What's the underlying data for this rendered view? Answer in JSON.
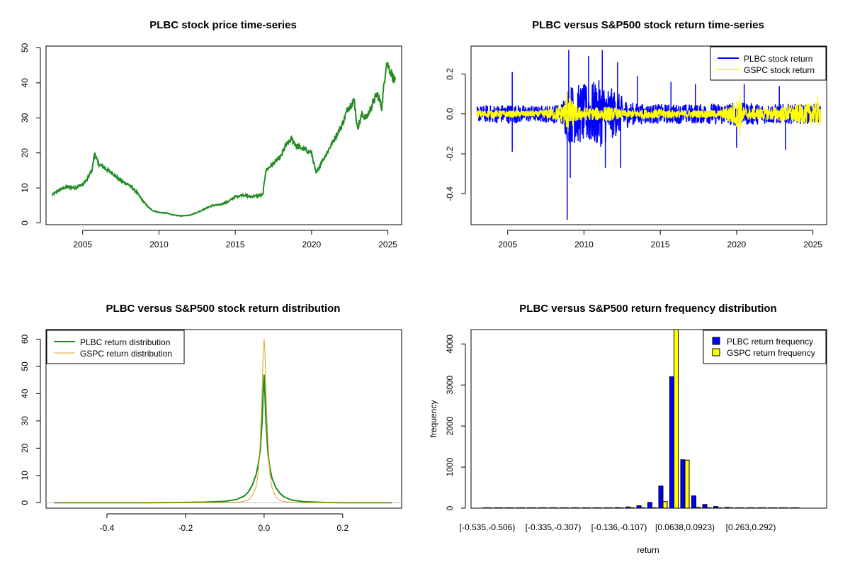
{
  "chart_data": [
    {
      "id": "price",
      "type": "line",
      "title": "PLBC stock price time-series",
      "xlabel": "",
      "ylabel": "",
      "xlim": [
        2002.6,
        2025.9
      ],
      "ylim": [
        -0.5,
        50.5
      ],
      "xticks": [
        2005,
        2010,
        2015,
        2020,
        2025
      ],
      "xtick_labels": [
        "2005",
        "2010",
        "2015",
        "2020",
        "2025"
      ],
      "yticks": [
        0,
        10,
        20,
        30,
        40,
        50
      ],
      "ytick_labels": [
        "0",
        "10",
        "20",
        "30",
        "40",
        "50"
      ],
      "legend": null,
      "series": [
        {
          "color": "#228b22",
          "x": [
            2003.0,
            2003.5,
            2004.0,
            2004.5,
            2005.0,
            2005.3,
            2005.6,
            2005.8,
            2006.0,
            2006.5,
            2007.0,
            2007.5,
            2008.0,
            2008.5,
            2009.0,
            2009.3,
            2009.6,
            2010.0,
            2010.5,
            2011.0,
            2011.5,
            2012.0,
            2012.5,
            2013.0,
            2013.5,
            2014.0,
            2014.5,
            2015.0,
            2015.5,
            2016.0,
            2016.5,
            2016.8,
            2017.0,
            2017.5,
            2018.0,
            2018.3,
            2018.7,
            2019.0,
            2019.5,
            2020.0,
            2020.3,
            2020.6,
            2021.0,
            2021.5,
            2022.0,
            2022.4,
            2022.8,
            2023.0,
            2023.3,
            2023.6,
            2024.0,
            2024.3,
            2024.6,
            2024.9,
            2025.2,
            2025.5
          ],
          "y": [
            8,
            9.5,
            10.3,
            10.0,
            11,
            12.5,
            15,
            20,
            17,
            15.5,
            14,
            12,
            11,
            9,
            6,
            4.5,
            3.5,
            3,
            2.8,
            2.2,
            2.0,
            2.2,
            3.0,
            4.0,
            5.0,
            5.2,
            6.0,
            7.5,
            8.0,
            7.5,
            7.8,
            8.0,
            15,
            17,
            19,
            22,
            24,
            22,
            21,
            20,
            14,
            17,
            20,
            24,
            28,
            33,
            35,
            27,
            31,
            30,
            34,
            37,
            33,
            46,
            43,
            40
          ]
        }
      ]
    },
    {
      "id": "returns",
      "type": "line",
      "title": "PLBC versus S&P500 stock return time-series",
      "xlabel": "",
      "ylabel": "",
      "xlim": [
        2002.6,
        2025.9
      ],
      "ylim": [
        -0.555,
        0.34
      ],
      "xticks": [
        2005,
        2010,
        2015,
        2020,
        2025
      ],
      "xtick_labels": [
        "2005",
        "2010",
        "2015",
        "2020",
        "2025"
      ],
      "yticks": [
        -0.4,
        -0.2,
        0.0,
        0.2
      ],
      "ytick_labels": [
        "-0.4",
        "-0.2",
        "0.0",
        "0.2"
      ],
      "legend": "top-right",
      "series": [
        {
          "name": "PLBC stock return",
          "color": "#0000ff",
          "envelope_x": [
            2003,
            2005,
            2007,
            2008.5,
            2009,
            2010,
            2011,
            2012,
            2013,
            2014,
            2016,
            2018,
            2020,
            2022,
            2025.5
          ],
          "envelope_y": [
            0.04,
            0.05,
            0.04,
            0.05,
            0.15,
            0.15,
            0.17,
            0.12,
            0.06,
            0.05,
            0.05,
            0.05,
            0.06,
            0.05,
            0.05
          ],
          "spikes": [
            [
              2005.3,
              0.21
            ],
            [
              2005.3,
              -0.19
            ],
            [
              2008.9,
              -0.53
            ],
            [
              2009.0,
              0.32
            ],
            [
              2009.1,
              -0.32
            ],
            [
              2010.3,
              0.29
            ],
            [
              2011.2,
              0.32
            ],
            [
              2011.4,
              -0.27
            ],
            [
              2012.2,
              0.26
            ],
            [
              2012.4,
              -0.27
            ],
            [
              2013.5,
              0.19
            ],
            [
              2015.7,
              0.16
            ],
            [
              2017.3,
              0.15
            ],
            [
              2020.0,
              -0.17
            ],
            [
              2020.5,
              0.15
            ],
            [
              2022.8,
              0.14
            ],
            [
              2023.2,
              -0.18
            ],
            [
              2025.3,
              0.05
            ]
          ]
        },
        {
          "name": "GSPC stock return",
          "color": "#ffff00",
          "envelope_x": [
            2003,
            2007,
            2008.5,
            2009,
            2009.5,
            2010.5,
            2011.5,
            2012.5,
            2015.5,
            2016,
            2019,
            2020.2,
            2020.5,
            2022,
            2025.5
          ],
          "envelope_y": [
            0.02,
            0.015,
            0.04,
            0.09,
            0.04,
            0.03,
            0.04,
            0.02,
            0.025,
            0.02,
            0.02,
            0.08,
            0.03,
            0.03,
            0.06
          ],
          "spikes": [
            [
              2008.9,
              0.11
            ],
            [
              2008.95,
              -0.09
            ],
            [
              2020.2,
              0.09
            ],
            [
              2020.2,
              -0.11
            ],
            [
              2025.3,
              0.09
            ]
          ]
        }
      ]
    },
    {
      "id": "density",
      "type": "line",
      "title": "PLBC versus S&P500 stock return distribution",
      "xlabel": "",
      "ylabel": "",
      "xlim": [
        -0.555,
        0.35
      ],
      "ylim": [
        -2.0,
        63.5
      ],
      "xticks": [
        -0.4,
        -0.2,
        0.0,
        0.2
      ],
      "xtick_labels": [
        "-0.4",
        "-0.2",
        "0.0",
        "0.2"
      ],
      "yticks": [
        0,
        10,
        20,
        30,
        40,
        50,
        60
      ],
      "ytick_labels": [
        "0",
        "10",
        "20",
        "30",
        "40",
        "50",
        "60"
      ],
      "legend": "top-left",
      "series": [
        {
          "name": "PLBC return distribution",
          "color": "#228b22",
          "x": [
            -0.535,
            -0.3,
            -0.2,
            -0.15,
            -0.1,
            -0.07,
            -0.05,
            -0.04,
            -0.03,
            -0.02,
            -0.015,
            -0.01,
            -0.005,
            -0.002,
            0.0,
            0.002,
            0.005,
            0.01,
            0.015,
            0.02,
            0.03,
            0.04,
            0.05,
            0.07,
            0.1,
            0.15,
            0.2,
            0.325
          ],
          "y": [
            0,
            0,
            0.1,
            0.2,
            0.5,
            1.2,
            2.5,
            4,
            6.5,
            10.5,
            14,
            19,
            30,
            42,
            47,
            40,
            29,
            18,
            12.5,
            9,
            5.5,
            3.5,
            2.2,
            1,
            0.4,
            0.1,
            0,
            0
          ]
        },
        {
          "name": "GSPC return distribution",
          "color": "#daa520",
          "x": [
            -0.535,
            -0.15,
            -0.1,
            -0.06,
            -0.04,
            -0.03,
            -0.02,
            -0.015,
            -0.01,
            -0.005,
            -0.002,
            0.0,
            0.002,
            0.005,
            0.01,
            0.015,
            0.02,
            0.03,
            0.04,
            0.06,
            0.1,
            0.325
          ],
          "y": [
            0,
            0,
            0.1,
            0.3,
            1,
            2.5,
            6,
            11,
            22,
            42,
            56,
            60,
            55,
            40,
            22,
            10,
            5.5,
            2,
            0.8,
            0.2,
            0,
            0
          ]
        }
      ]
    },
    {
      "id": "histogram",
      "type": "bar",
      "title": "PLBC versus S&P500 return frequency distribution",
      "xlabel": "return",
      "ylabel": "frequency",
      "ylim": [
        0,
        4350
      ],
      "yticks": [
        0,
        1000,
        2000,
        3000,
        4000
      ],
      "ytick_labels": [
        "0",
        "1000",
        "2000",
        "3000",
        "4000"
      ],
      "category_label_positions": [
        0,
        6,
        12,
        18,
        24
      ],
      "category_labels_shown": [
        "[-0.535,-0.506)",
        "[-0.335,-0.307)",
        "[-0.136,-0.107)",
        "[0.0638,0.0923)",
        "[0.263,0.292)"
      ],
      "legend": "top-right",
      "series": [
        {
          "name": "PLBC return frequency",
          "color": "#0000ff",
          "values": [
            1,
            0,
            0,
            0,
            0,
            0,
            1,
            0,
            1,
            2,
            3,
            8,
            15,
            30,
            60,
            140,
            540,
            3200,
            1180,
            300,
            90,
            40,
            20,
            10,
            8,
            5,
            2,
            1,
            1
          ]
        },
        {
          "name": "GSPC return frequency",
          "color": "#ffff00",
          "values": [
            0,
            0,
            0,
            0,
            0,
            0,
            0,
            0,
            0,
            0,
            0,
            0,
            0,
            0,
            2,
            5,
            160,
            4550,
            1170,
            25,
            2,
            0,
            0,
            0,
            0,
            0,
            0,
            0,
            0
          ]
        }
      ]
    }
  ]
}
